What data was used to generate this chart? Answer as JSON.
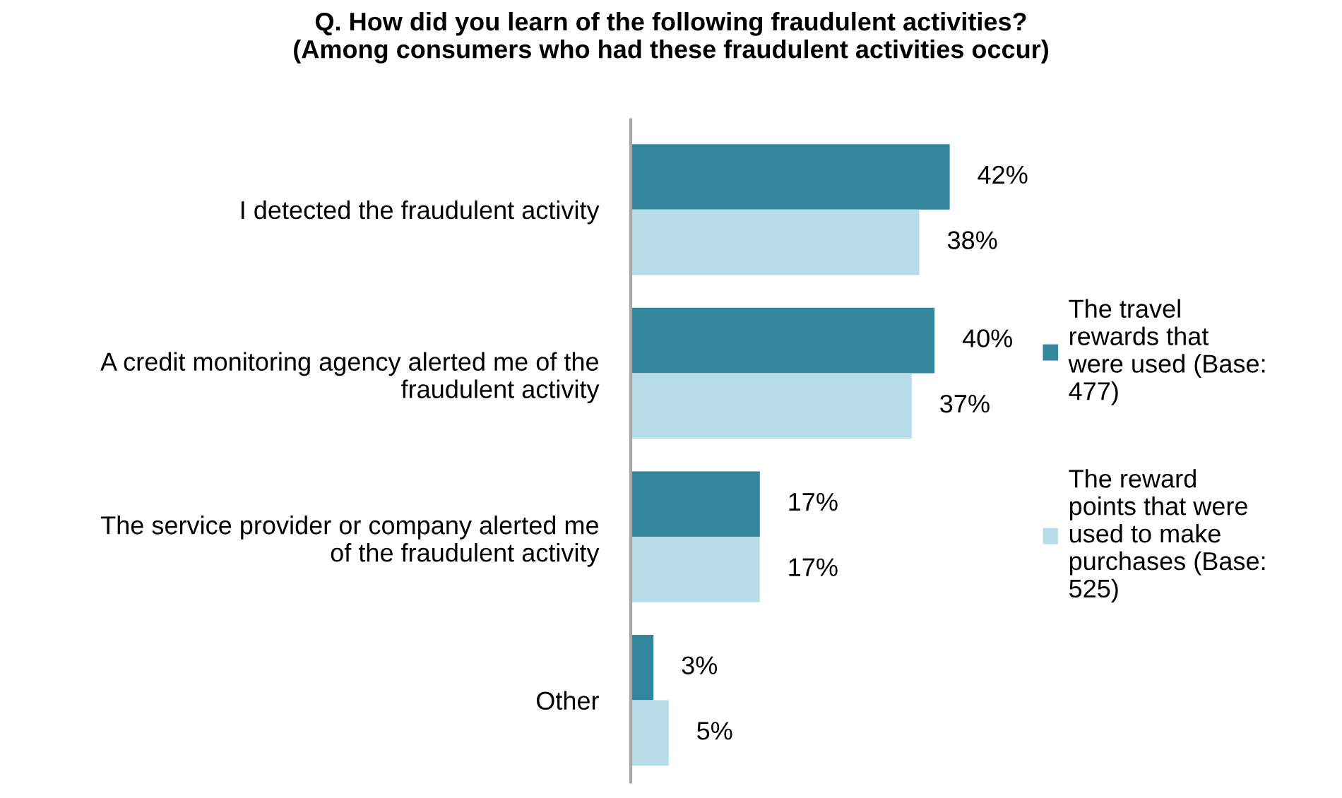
{
  "chart_data": {
    "type": "bar",
    "orientation": "horizontal",
    "title": "Q. How did you learn of the following fraudulent activities?\n(Among consumers who had these fraudulent activities occur)",
    "categories": [
      "I detected the fraudulent activity",
      "A credit monitoring agency alerted me of the fraudulent activity",
      "The service provider or company alerted me of the fraudulent activity",
      "Other"
    ],
    "series": [
      {
        "name": "The travel rewards that were used (Base: 477)",
        "color": "#31869b",
        "values": [
          42,
          40,
          17,
          3
        ],
        "value_labels": [
          "42%",
          "40%",
          "17%",
          "3%"
        ]
      },
      {
        "name": "The reward points that were used to make purchases (Base: 525)",
        "color": "#b7dee8",
        "values": [
          38,
          37,
          17,
          5
        ],
        "value_labels": [
          "38%",
          "37%",
          "17%",
          "5%"
        ]
      }
    ],
    "legend": "right"
  }
}
